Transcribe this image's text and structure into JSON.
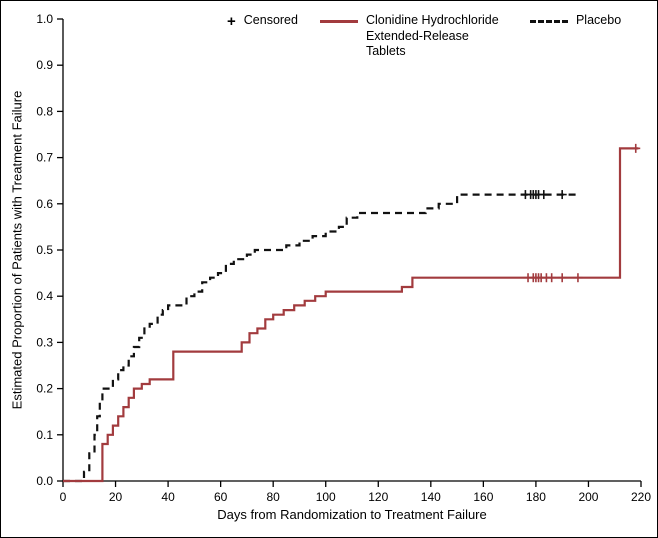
{
  "chart_data": {
    "type": "line",
    "subtype": "kaplan-meier-step",
    "title": "",
    "xlabel": "Days from Randomization to Treatment Failure",
    "ylabel": "Estimated Proportion of Patients with Treatment Failure",
    "xlim": [
      0,
      220
    ],
    "ylim": [
      0.0,
      1.0
    ],
    "xtick_values": [
      0,
      20,
      40,
      60,
      80,
      100,
      120,
      140,
      160,
      180,
      200,
      220
    ],
    "xtick_labels": [
      "0",
      "20",
      "40",
      "60",
      "80",
      "100",
      "120",
      "140",
      "160",
      "180",
      "200",
      "220"
    ],
    "ytick_values": [
      0.0,
      0.1,
      0.2,
      0.3,
      0.4,
      0.5,
      0.6,
      0.7,
      0.8,
      0.9,
      1.0
    ],
    "ytick_labels": [
      "0.0",
      "0.1",
      "0.2",
      "0.3",
      "0.4",
      "0.5",
      "0.6",
      "0.7",
      "0.8",
      "0.9",
      "1.0"
    ],
    "grid": false,
    "legend_position": "top-inside",
    "legend": {
      "censored": "Censored",
      "clonidine": "Clonidine Hydrochloride Extended-Release Tablets",
      "placebo": "Placebo"
    },
    "series": [
      {
        "name": "Placebo",
        "style": "dashed",
        "color": "#111111",
        "points": [
          [
            0,
            0.0
          ],
          [
            8,
            0.02
          ],
          [
            10,
            0.06
          ],
          [
            12,
            0.1
          ],
          [
            13,
            0.14
          ],
          [
            14,
            0.17
          ],
          [
            15,
            0.2
          ],
          [
            19,
            0.22
          ],
          [
            21,
            0.24
          ],
          [
            23,
            0.25
          ],
          [
            25,
            0.27
          ],
          [
            27,
            0.29
          ],
          [
            29,
            0.31
          ],
          [
            31,
            0.33
          ],
          [
            33,
            0.34
          ],
          [
            36,
            0.36
          ],
          [
            38,
            0.37
          ],
          [
            40,
            0.38
          ],
          [
            47,
            0.4
          ],
          [
            50,
            0.41
          ],
          [
            53,
            0.43
          ],
          [
            56,
            0.44
          ],
          [
            59,
            0.45
          ],
          [
            62,
            0.47
          ],
          [
            65,
            0.48
          ],
          [
            70,
            0.49
          ],
          [
            73,
            0.5
          ],
          [
            85,
            0.51
          ],
          [
            90,
            0.52
          ],
          [
            95,
            0.53
          ],
          [
            100,
            0.54
          ],
          [
            105,
            0.55
          ],
          [
            108,
            0.57
          ],
          [
            112,
            0.58
          ],
          [
            138,
            0.59
          ],
          [
            143,
            0.6
          ],
          [
            150,
            0.62
          ],
          [
            196,
            0.62
          ]
        ],
        "censored_points": [
          [
            176,
            0.62
          ],
          [
            178,
            0.62
          ],
          [
            179,
            0.62
          ],
          [
            180,
            0.62
          ],
          [
            181,
            0.62
          ],
          [
            183,
            0.62
          ],
          [
            190,
            0.62
          ]
        ]
      },
      {
        "name": "Clonidine Hydrochloride Extended-Release Tablets",
        "style": "solid",
        "color": "#a23b3e",
        "points": [
          [
            0,
            0.0
          ],
          [
            15,
            0.08
          ],
          [
            17,
            0.1
          ],
          [
            19,
            0.12
          ],
          [
            21,
            0.14
          ],
          [
            23,
            0.16
          ],
          [
            25,
            0.18
          ],
          [
            27,
            0.2
          ],
          [
            30,
            0.21
          ],
          [
            33,
            0.22
          ],
          [
            42,
            0.28
          ],
          [
            68,
            0.3
          ],
          [
            71,
            0.32
          ],
          [
            74,
            0.33
          ],
          [
            77,
            0.35
          ],
          [
            80,
            0.36
          ],
          [
            84,
            0.37
          ],
          [
            88,
            0.38
          ],
          [
            92,
            0.39
          ],
          [
            96,
            0.4
          ],
          [
            100,
            0.41
          ],
          [
            129,
            0.42
          ],
          [
            133,
            0.44
          ],
          [
            212,
            0.72
          ],
          [
            219,
            0.72
          ]
        ],
        "censored_points": [
          [
            177,
            0.44
          ],
          [
            179,
            0.44
          ],
          [
            180,
            0.44
          ],
          [
            181,
            0.44
          ],
          [
            182,
            0.44
          ],
          [
            184,
            0.44
          ],
          [
            186,
            0.44
          ],
          [
            190,
            0.44
          ],
          [
            196,
            0.44
          ],
          [
            218,
            0.72
          ]
        ]
      }
    ]
  }
}
